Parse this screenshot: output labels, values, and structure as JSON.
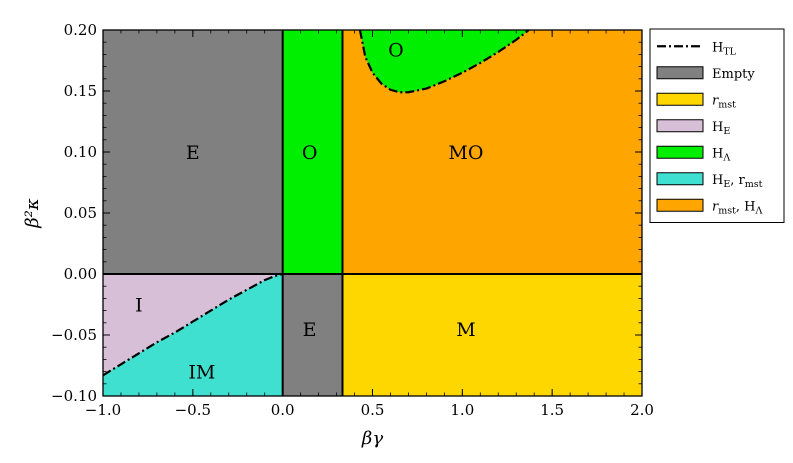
{
  "chart_data": {
    "type": "area",
    "title": "",
    "xlabel": "βγ",
    "ylabel": "β²κ",
    "xlim": [
      -1.0,
      2.0
    ],
    "ylim": [
      -0.1,
      0.2
    ],
    "x_ticks": [
      -1.0,
      -0.5,
      0.0,
      0.5,
      1.0,
      1.5,
      2.0
    ],
    "x_tick_labels": [
      "−1.0",
      "−0.5",
      "0.0",
      "0.5",
      "1.0",
      "1.5",
      "2.0"
    ],
    "y_ticks": [
      -0.1,
      -0.05,
      0.0,
      0.05,
      0.1,
      0.15,
      0.2
    ],
    "y_tick_labels": [
      "−0.10",
      "−0.05",
      "0.00",
      "0.05",
      "0.10",
      "0.15",
      "0.20"
    ],
    "grid": false,
    "legend_position": "outside-right",
    "colors": {
      "empty": "#808080",
      "r_mst": "#ffd700",
      "H_E": "#d8bfd8",
      "H_Lambda": "#00ee00",
      "H_E_r_mst": "#40e0d0",
      "r_mst_H_Lambda": "#ffa500"
    },
    "legend": [
      {
        "key": "H_TL",
        "main": "H",
        "sub": "TL",
        "tail": "",
        "style": "dashdot"
      },
      {
        "key": "empty",
        "main": "Empty",
        "sub": "",
        "tail": "",
        "style": "patch"
      },
      {
        "key": "r_mst",
        "main": "r",
        "sub": "mst",
        "tail": "",
        "style": "patch"
      },
      {
        "key": "H_E",
        "main": "H",
        "sub": "E",
        "tail": "",
        "style": "patch"
      },
      {
        "key": "H_Lambda",
        "main": "H",
        "sub": "Λ",
        "tail": "",
        "style": "patch"
      },
      {
        "key": "H_E_r_mst",
        "main": "H",
        "sub": "E",
        "tail": ", r",
        "sub2": "mst",
        "style": "patch"
      },
      {
        "key": "r_mst_H_Lambda",
        "main": "r",
        "sub": "mst",
        "tail": ", H",
        "sub2": "Λ",
        "style": "patch"
      }
    ],
    "vertical_boundaries": [
      0.0,
      0.333
    ],
    "horizontal_boundary": 0.0,
    "regions": [
      {
        "key": "empty",
        "label": "E",
        "xmin": -1.0,
        "xmax": 0.0,
        "ymin": 0.0,
        "ymax": 0.2,
        "label_x": -0.5,
        "label_y": 0.1
      },
      {
        "key": "H_Lambda",
        "label": "O",
        "xmin": 0.0,
        "xmax": 0.333,
        "ymin": 0.0,
        "ymax": 0.2,
        "label_x": 0.15,
        "label_y": 0.1
      },
      {
        "key": "r_mst_H_Lambda",
        "label": "MO",
        "xmin": 0.333,
        "xmax": 2.0,
        "ymin": 0.0,
        "ymax": 0.2,
        "label_x": 1.02,
        "label_y": 0.1
      },
      {
        "key": "empty",
        "label": "E",
        "xmin": 0.0,
        "xmax": 0.333,
        "ymin": -0.1,
        "ymax": 0.0,
        "label_x": 0.15,
        "label_y": -0.045
      },
      {
        "key": "r_mst",
        "label": "M",
        "xmin": 0.333,
        "xmax": 2.0,
        "ymin": -0.1,
        "ymax": 0.0,
        "label_x": 1.02,
        "label_y": -0.045
      },
      {
        "key": "H_E_r_mst",
        "label": "IM",
        "xmin": -1.0,
        "xmax": 0.0,
        "ymin": -0.1,
        "ymax": 0.0,
        "label_x": -0.45,
        "label_y": -0.08
      }
    ],
    "curve_lower": {
      "key": "H_E",
      "label": "I",
      "label_x": -0.8,
      "label_y": -0.025,
      "x": [
        -1.0,
        -0.9,
        -0.8,
        -0.7,
        -0.6,
        -0.5,
        -0.4,
        -0.3,
        -0.2,
        -0.1,
        -0.05,
        0.0
      ],
      "y": [
        -0.083,
        -0.074,
        -0.065,
        -0.056,
        -0.048,
        -0.039,
        -0.03,
        -0.021,
        -0.013,
        -0.005,
        -0.002,
        0.0
      ]
    },
    "curve_upper": {
      "key": "H_Lambda",
      "label": "O",
      "label_x": 0.63,
      "label_y": 0.184,
      "x": [
        0.43,
        0.46,
        0.5,
        0.55,
        0.6,
        0.65,
        0.7,
        0.8,
        0.9,
        1.0,
        1.1,
        1.2,
        1.3,
        1.37
      ],
      "y": [
        0.2,
        0.178,
        0.165,
        0.156,
        0.151,
        0.149,
        0.149,
        0.152,
        0.158,
        0.165,
        0.173,
        0.182,
        0.192,
        0.2
      ]
    }
  }
}
